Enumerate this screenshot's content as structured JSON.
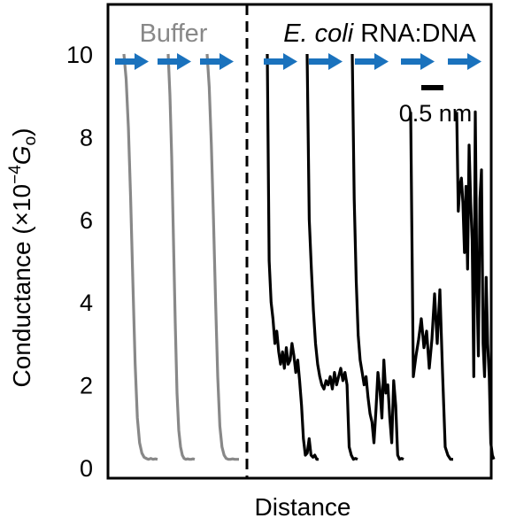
{
  "chart_data": {
    "type": "line",
    "xlabel": "Distance",
    "ylabel": "Conductance (×10",
    "ylabel_exp": "−4",
    "ylabel_unit": "G",
    "ylabel_unit_sub": "o",
    "ylabel_close": ")",
    "ylim": [
      0,
      11.2
    ],
    "yticks": [
      {
        "value": 0,
        "label": "0"
      },
      {
        "value": 2,
        "label": "2"
      },
      {
        "value": 4,
        "label": "4"
      },
      {
        "value": 6,
        "label": "6"
      },
      {
        "value": 8,
        "label": "8"
      },
      {
        "value": 10,
        "label": "10"
      }
    ],
    "grid": false,
    "panels": {
      "left": {
        "label": "Buffer",
        "color": "#888888",
        "arrows": 3
      },
      "right": {
        "label_italic": "E. coli",
        "label_rest": " RNA:DNA",
        "color": "#000000",
        "arrows": 5
      }
    },
    "arrow_color": "#1a72bd",
    "scale_bar": {
      "label": "0.5 nm",
      "length_nm": 0.5
    },
    "series": [
      {
        "panel": "left",
        "values": [
          10,
          9.4,
          8.2,
          6.5,
          4.5,
          2.5,
          1.2,
          0.6,
          0.35,
          0.25,
          0.22,
          0.2,
          0.22,
          0.2,
          0.21,
          0.2
        ]
      },
      {
        "panel": "left",
        "values": [
          10,
          9.0,
          7.5,
          5.5,
          3.5,
          1.8,
          0.9,
          0.5,
          0.3,
          0.22,
          0.2,
          0.21,
          0.2,
          0.2,
          0.21,
          0.2
        ]
      },
      {
        "panel": "left",
        "values": [
          10,
          9.2,
          7.8,
          6.0,
          4.0,
          2.2,
          1.0,
          0.5,
          0.3,
          0.22,
          0.2,
          0.2,
          0.21,
          0.2,
          0.2,
          0.2
        ]
      },
      {
        "panel": "right",
        "values": [
          10,
          5.0,
          4.0,
          3.6,
          3.0,
          3.3,
          2.8,
          2.5,
          2.8,
          2.4,
          2.9,
          2.5,
          2.6,
          3.0,
          2.7,
          2.3,
          2.6,
          2.1,
          1.5,
          0.7,
          0.3,
          0.35,
          0.7,
          0.3,
          0.25,
          0.3,
          0.2,
          0.2
        ]
      },
      {
        "panel": "right",
        "values": [
          10,
          6.0,
          4.8,
          3.8,
          3.0,
          2.5,
          2.2,
          2.0,
          1.9,
          2.1,
          2.0,
          2.2,
          1.9,
          2.3,
          2.0,
          2.2,
          2.4,
          2.1,
          2.3,
          2.0,
          0.5,
          0.3,
          0.2,
          0.22,
          0.2
        ]
      },
      {
        "panel": "right",
        "values": [
          10,
          6.5,
          4.5,
          3.2,
          2.6,
          2.3,
          2.0,
          2.2,
          1.7,
          1.3,
          1.1,
          0.6,
          1.4,
          2.3,
          1.9,
          1.2,
          2.6,
          1.8,
          2.0,
          1.2,
          0.6,
          2.1,
          1.5,
          0.3,
          0.2,
          0.22,
          0.2
        ]
      },
      {
        "panel": "right",
        "values": [
          8.6,
          2.2,
          2.7,
          3.1,
          3.6,
          2.9,
          3.3,
          2.4,
          3.1,
          4.2,
          3.0,
          4.3,
          2.3,
          0.5,
          0.3,
          0.2,
          0.2
        ]
      },
      {
        "panel": "right",
        "values": [
          8.6,
          6.2,
          6.8,
          7.0,
          6.4,
          5.2,
          6.8,
          4.8,
          7.8,
          6.4,
          5.5,
          2.2,
          8.6,
          4.5,
          2.7,
          6.5,
          7.2,
          3.0,
          2.2,
          4.6,
          3.0,
          2.2,
          0.6,
          0.3,
          0.2
        ]
      }
    ]
  }
}
